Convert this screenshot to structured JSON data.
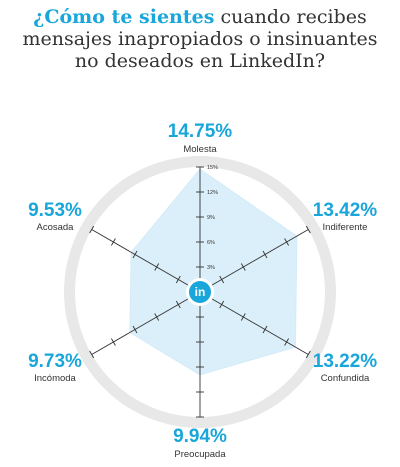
{
  "title": {
    "highlight": "¿Cómo te sientes",
    "line1_rest": " cuando recibes",
    "line2": "mensajes inapropiados o insinuantes",
    "line3": "no deseados en LinkedIn?"
  },
  "center_logo": "in",
  "colors": {
    "accent": "#19a6da",
    "fill": "#d3ecf8",
    "outer_ring": "#e8e8e8",
    "axis": "#333333",
    "text": "#333333"
  },
  "chart_data": {
    "type": "radar",
    "categories": [
      "Molesta",
      "Indiferente",
      "Confundida",
      "Preocupada",
      "Incómoda",
      "Acosada"
    ],
    "values": [
      14.75,
      13.42,
      13.22,
      9.94,
      9.73,
      9.53
    ],
    "value_labels": [
      "14.75%",
      "13.42%",
      "13.22%",
      "9.94%",
      "9.73%",
      "9.53%"
    ],
    "rmax": 15,
    "ticks": [
      3,
      6,
      9,
      12,
      15
    ],
    "tick_labels": [
      "3%",
      "6%",
      "9%",
      "12%",
      "15%"
    ],
    "grid": false,
    "legend": "none"
  }
}
